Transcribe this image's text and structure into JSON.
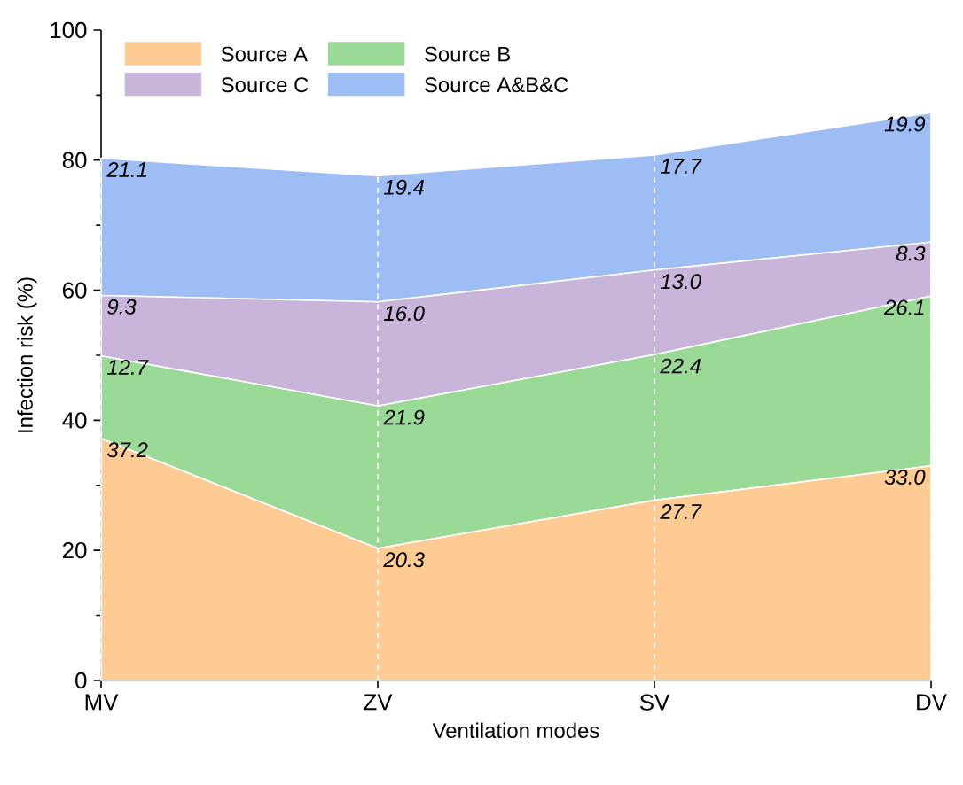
{
  "chart_data": {
    "type": "area",
    "stacked": true,
    "xlabel": "Ventilation modes",
    "ylabel": "Infection risk (%)",
    "categories": [
      "MV",
      "ZV",
      "SV",
      "DV"
    ],
    "series": [
      {
        "name": "Source A",
        "color": "#fdcb93",
        "values": [
          37.2,
          20.3,
          27.7,
          33.0
        ],
        "value_labels": [
          "37.2",
          "20.3",
          "27.7",
          "33.0"
        ]
      },
      {
        "name": "Source B",
        "color": "#9ad996",
        "values": [
          12.7,
          21.9,
          22.4,
          26.1
        ],
        "value_labels": [
          "12.7",
          "21.9",
          "22.4",
          "26.1"
        ]
      },
      {
        "name": "Source C",
        "color": "#c9b4da",
        "values": [
          9.3,
          16.0,
          13.0,
          8.3
        ],
        "value_labels": [
          "9.3",
          "16.0",
          "13.0",
          "8.3"
        ]
      },
      {
        "name": "Source A&B&C",
        "color": "#9ebdf5",
        "values": [
          21.1,
          19.4,
          17.7,
          19.9
        ],
        "value_labels": [
          "21.1",
          "19.4",
          "17.7",
          "19.9"
        ]
      }
    ],
    "ylim": [
      0,
      100
    ],
    "yticks": [
      0,
      20,
      40,
      60,
      80,
      100
    ],
    "grid": "x",
    "legend": "top"
  }
}
